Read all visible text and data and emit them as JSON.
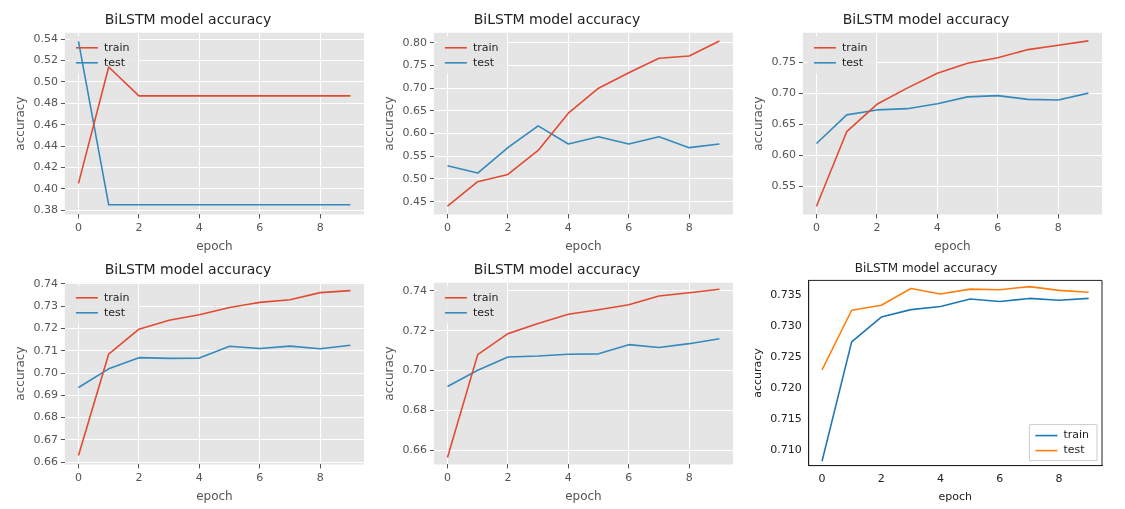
{
  "chart_data": [
    {
      "type": "line",
      "title": "BiLSTM model accuracy",
      "xlabel": "epoch",
      "ylabel": "accuracy",
      "x": [
        0,
        1,
        2,
        3,
        4,
        5,
        6,
        7,
        8,
        9
      ],
      "xlim": [
        -0.45,
        9.45
      ],
      "xticks": [
        0,
        2,
        4,
        6,
        8
      ],
      "ylim": [
        0.376,
        0.546
      ],
      "yticks": [
        {
          "value": 0.38,
          "label": "0.38"
        },
        {
          "value": 0.4,
          "label": "0.40"
        },
        {
          "value": 0.42,
          "label": "0.42"
        },
        {
          "value": 0.44,
          "label": "0.44"
        },
        {
          "value": 0.46,
          "label": "0.46"
        },
        {
          "value": 0.48,
          "label": "0.48"
        },
        {
          "value": 0.5,
          "label": "0.50"
        },
        {
          "value": 0.52,
          "label": "0.52"
        },
        {
          "value": 0.54,
          "label": "0.54"
        }
      ],
      "grid": true,
      "legend": "top left",
      "series": [
        {
          "name": "train",
          "color": "#e24a33",
          "values": [
            0.405,
            0.514,
            0.487,
            0.487,
            0.487,
            0.487,
            0.487,
            0.487,
            0.487,
            0.487
          ]
        },
        {
          "name": "test",
          "color": "#348abd",
          "values": [
            0.538,
            0.385,
            0.385,
            0.385,
            0.385,
            0.385,
            0.385,
            0.385,
            0.385,
            0.385
          ]
        }
      ]
    },
    {
      "type": "line",
      "title": "BiLSTM model accuracy",
      "xlabel": "epoch",
      "ylabel": "accuracy",
      "x": [
        0,
        1,
        2,
        3,
        4,
        5,
        6,
        7,
        8,
        9
      ],
      "xlim": [
        -0.45,
        9.45
      ],
      "xticks": [
        0,
        2,
        4,
        6,
        8
      ],
      "ylim": [
        0.422,
        0.822
      ],
      "yticks": [
        {
          "value": 0.45,
          "label": "0.45"
        },
        {
          "value": 0.5,
          "label": "0.50"
        },
        {
          "value": 0.55,
          "label": "0.55"
        },
        {
          "value": 0.6,
          "label": "0.60"
        },
        {
          "value": 0.65,
          "label": "0.65"
        },
        {
          "value": 0.7,
          "label": "0.70"
        },
        {
          "value": 0.75,
          "label": "0.75"
        },
        {
          "value": 0.8,
          "label": "0.80"
        }
      ],
      "grid": true,
      "legend": "top left",
      "series": [
        {
          "name": "train",
          "color": "#e24a33",
          "values": [
            0.44,
            0.494,
            0.51,
            0.563,
            0.645,
            0.7,
            0.734,
            0.766,
            0.771,
            0.804
          ]
        },
        {
          "name": "test",
          "color": "#348abd",
          "values": [
            0.529,
            0.513,
            0.569,
            0.617,
            0.577,
            0.593,
            0.577,
            0.593,
            0.569,
            0.577
          ]
        }
      ]
    },
    {
      "type": "line",
      "title": "BiLSTM model accuracy",
      "xlabel": "epoch",
      "ylabel": "accuracy",
      "x": [
        0,
        1,
        2,
        3,
        4,
        5,
        6,
        7,
        8,
        9
      ],
      "xlim": [
        -0.45,
        9.45
      ],
      "xticks": [
        0,
        2,
        4,
        6,
        8
      ],
      "ylim": [
        0.505,
        0.797
      ],
      "yticks": [
        {
          "value": 0.55,
          "label": "0.55"
        },
        {
          "value": 0.6,
          "label": "0.60"
        },
        {
          "value": 0.65,
          "label": "0.65"
        },
        {
          "value": 0.7,
          "label": "0.70"
        },
        {
          "value": 0.75,
          "label": "0.75"
        }
      ],
      "grid": true,
      "legend": "top left",
      "series": [
        {
          "name": "train",
          "color": "#e24a33",
          "values": [
            0.518,
            0.638,
            0.682,
            0.708,
            0.732,
            0.748,
            0.757,
            0.77,
            0.777,
            0.784
          ]
        },
        {
          "name": "test",
          "color": "#348abd",
          "values": [
            0.619,
            0.665,
            0.673,
            0.675,
            0.683,
            0.694,
            0.696,
            0.69,
            0.689,
            0.7
          ]
        }
      ]
    },
    {
      "type": "line",
      "title": "BiLSTM model accuracy",
      "xlabel": "epoch",
      "ylabel": "accuracy",
      "x": [
        0,
        1,
        2,
        3,
        4,
        5,
        6,
        7,
        8,
        9
      ],
      "xlim": [
        -0.45,
        9.45
      ],
      "xticks": [
        0,
        2,
        4,
        6,
        8
      ],
      "ylim": [
        0.659,
        0.7405
      ],
      "yticks": [
        {
          "value": 0.66,
          "label": "0.66"
        },
        {
          "value": 0.67,
          "label": "0.67"
        },
        {
          "value": 0.68,
          "label": "0.68"
        },
        {
          "value": 0.69,
          "label": "0.69"
        },
        {
          "value": 0.7,
          "label": "0.70"
        },
        {
          "value": 0.71,
          "label": "0.71"
        },
        {
          "value": 0.72,
          "label": "0.72"
        },
        {
          "value": 0.73,
          "label": "0.73"
        },
        {
          "value": 0.74,
          "label": "0.74"
        }
      ],
      "grid": true,
      "legend": "top left",
      "series": [
        {
          "name": "train",
          "color": "#e24a33",
          "values": [
            0.663,
            0.7085,
            0.7197,
            0.7237,
            0.7262,
            0.7294,
            0.7317,
            0.7329,
            0.7361,
            0.737
          ]
        },
        {
          "name": "test",
          "color": "#348abd",
          "values": [
            0.6935,
            0.7019,
            0.7069,
            0.7066,
            0.7067,
            0.712,
            0.711,
            0.7121,
            0.7109,
            0.7125
          ]
        }
      ]
    },
    {
      "type": "line",
      "title": "BiLSTM model accuracy",
      "xlabel": "epoch",
      "ylabel": "accuracy",
      "x": [
        0,
        1,
        2,
        3,
        4,
        5,
        6,
        7,
        8,
        9
      ],
      "xlim": [
        -0.45,
        9.45
      ],
      "xticks": [
        0,
        2,
        4,
        6,
        8
      ],
      "ylim": [
        0.653,
        0.744
      ],
      "yticks": [
        {
          "value": 0.66,
          "label": "0.66"
        },
        {
          "value": 0.68,
          "label": "0.68"
        },
        {
          "value": 0.7,
          "label": "0.70"
        },
        {
          "value": 0.72,
          "label": "0.72"
        },
        {
          "value": 0.74,
          "label": "0.74"
        }
      ],
      "grid": true,
      "legend": "top left",
      "series": [
        {
          "name": "train",
          "color": "#e24a33",
          "values": [
            0.6565,
            0.708,
            0.7185,
            0.7236,
            0.7282,
            0.7305,
            0.733,
            0.7374,
            0.739,
            0.7408
          ]
        },
        {
          "name": "test",
          "color": "#348abd",
          "values": [
            0.692,
            0.7002,
            0.7068,
            0.7073,
            0.7082,
            0.7084,
            0.713,
            0.7116,
            0.7135,
            0.716
          ]
        }
      ]
    },
    {
      "type": "line",
      "title": "BiLSTM model accuracy",
      "xlabel": "epoch",
      "ylabel": "accuracy",
      "x": [
        0,
        1,
        2,
        3,
        4,
        5,
        6,
        7,
        8,
        9
      ],
      "xlim": [
        -0.45,
        9.45
      ],
      "xticks": [
        0,
        2,
        4,
        6,
        8
      ],
      "ylim": [
        0.7075,
        0.7373
      ],
      "yticks": [
        {
          "value": 0.71,
          "label": "0.710"
        },
        {
          "value": 0.715,
          "label": "0.715"
        },
        {
          "value": 0.72,
          "label": "0.720"
        },
        {
          "value": 0.725,
          "label": "0.725"
        },
        {
          "value": 0.73,
          "label": "0.730"
        },
        {
          "value": 0.735,
          "label": "0.735"
        }
      ],
      "legend": "bottom right",
      "series": [
        {
          "name": "train",
          "color": "#1f77b4",
          "values": [
            0.7082,
            0.7274,
            0.7314,
            0.7326,
            0.7331,
            0.7343,
            0.7339,
            0.7344,
            0.7341,
            0.7344
          ]
        },
        {
          "name": "test",
          "color": "#ff7f0e",
          "values": [
            0.7229,
            0.7325,
            0.7333,
            0.736,
            0.7351,
            0.7359,
            0.7358,
            0.7363,
            0.7357,
            0.7354
          ]
        }
      ]
    }
  ]
}
